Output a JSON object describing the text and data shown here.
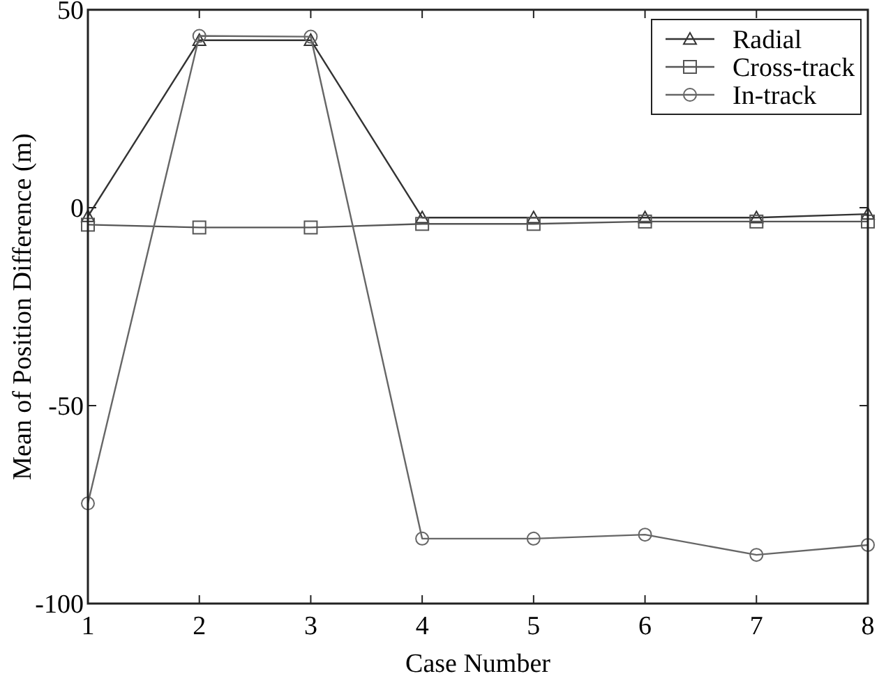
{
  "chart_data": {
    "type": "line",
    "xlabel": "Case Number",
    "ylabel": "Mean of Position Difference (m)",
    "x": [
      1,
      2,
      3,
      4,
      5,
      6,
      7,
      8
    ],
    "xlim": [
      1,
      8
    ],
    "xticks": [
      1,
      2,
      3,
      4,
      5,
      6,
      7,
      8
    ],
    "ylim": [
      -100,
      50
    ],
    "yticks": [
      -100,
      -50,
      0,
      50
    ],
    "legend": "top right",
    "grid": false,
    "series": [
      {
        "name": "Radial",
        "color": "#333333",
        "marker": "triangle",
        "values": [
          -2.2,
          42.3,
          42.3,
          -2.5,
          -2.5,
          -2.5,
          -2.5,
          -1.6
        ]
      },
      {
        "name": "Cross-track",
        "color": "#555555",
        "marker": "square",
        "values": [
          -4.3,
          -5.0,
          -5.0,
          -4.1,
          -4.1,
          -3.5,
          -3.5,
          -3.5
        ]
      },
      {
        "name": "In-track",
        "color": "#666666",
        "marker": "circle",
        "values": [
          -74.7,
          43.4,
          43.2,
          -83.6,
          -83.6,
          -82.6,
          -87.7,
          -85.2
        ]
      }
    ]
  }
}
